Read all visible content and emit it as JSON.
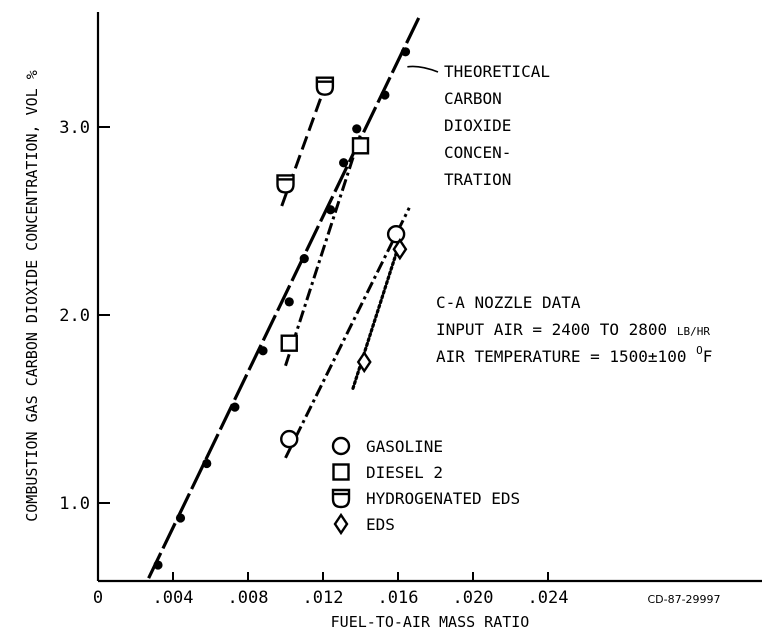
{
  "chart_data": {
    "type": "scatter",
    "xlabel": "FUEL-TO-AIR MASS RATIO",
    "ylabel": "COMBUSTION GAS CARBON DIOXIDE CONCENTRATION, VOL %",
    "xlim": [
      0,
      0.0275
    ],
    "ylim": [
      0.6,
      3.6
    ],
    "x_ticks": [
      {
        "value": 0,
        "label": "0"
      },
      {
        "value": 0.004,
        "label": ".004"
      },
      {
        "value": 0.008,
        "label": ".008"
      },
      {
        "value": 0.012,
        "label": ".012"
      },
      {
        "value": 0.016,
        "label": ".016"
      },
      {
        "value": 0.02,
        "label": ".020"
      },
      {
        "value": 0.024,
        "label": ".024"
      }
    ],
    "y_ticks": [
      {
        "value": 1.0,
        "label": "1.0"
      },
      {
        "value": 2.0,
        "label": "2.0"
      },
      {
        "value": 3.0,
        "label": "3.0"
      }
    ],
    "theoretical": {
      "label_lines": [
        "THEORETICAL",
        "CARBON",
        "DIOXIDE",
        "CONCEN-",
        "TRATION"
      ],
      "line": [
        [
          0.0027,
          0.6
        ],
        [
          0.0172,
          3.6
        ]
      ],
      "points": [
        [
          0.0032,
          0.67
        ],
        [
          0.0044,
          0.92
        ],
        [
          0.0058,
          1.21
        ],
        [
          0.0073,
          1.51
        ],
        [
          0.0088,
          1.81
        ],
        [
          0.0102,
          2.07
        ],
        [
          0.011,
          2.3
        ],
        [
          0.0124,
          2.56
        ],
        [
          0.0131,
          2.81
        ],
        [
          0.0138,
          2.99
        ],
        [
          0.0153,
          3.17
        ],
        [
          0.0164,
          3.4
        ]
      ]
    },
    "series": [
      {
        "name": "GASOLINE",
        "marker": "circle",
        "points": [
          [
            0.0102,
            1.34
          ],
          [
            0.0159,
            2.43
          ]
        ],
        "fit": [
          [
            0.01,
            1.24
          ],
          [
            0.0166,
            2.57
          ]
        ],
        "dash": "12,4,3,4"
      },
      {
        "name": "DIESEL 2",
        "marker": "square",
        "points": [
          [
            0.0102,
            1.85
          ],
          [
            0.014,
            2.9
          ]
        ],
        "fit": [
          [
            0.01,
            1.73
          ],
          [
            0.014,
            2.96
          ]
        ],
        "dash": "12,4,3,4"
      },
      {
        "name": "HYDROGENATED EDS",
        "marker": "shield",
        "points": [
          [
            0.01,
            2.7
          ],
          [
            0.0121,
            3.22
          ]
        ],
        "fit": [
          [
            0.0098,
            2.58
          ],
          [
            0.0123,
            3.27
          ]
        ],
        "dash": "14,6"
      },
      {
        "name": "EDS",
        "marker": "diamond",
        "points": [
          [
            0.0142,
            1.75
          ],
          [
            0.0161,
            2.35
          ]
        ],
        "fit": [
          [
            0.0136,
            1.61
          ],
          [
            0.0162,
            2.42
          ]
        ],
        "dash": "2,3"
      }
    ],
    "annotation": {
      "line1": "C-A NOZZLE DATA",
      "line2_prefix": "INPUT AIR = 2400 TO 2800 ",
      "line2_unit": "LB/HR",
      "line3_prefix": "AIR TEMPERATURE = 1500±100 ",
      "line3_unit_sup": "O",
      "line3_unit": "F"
    },
    "figure_id": "CD-87-29997",
    "grid": false,
    "legend_position": "bottom-center"
  }
}
